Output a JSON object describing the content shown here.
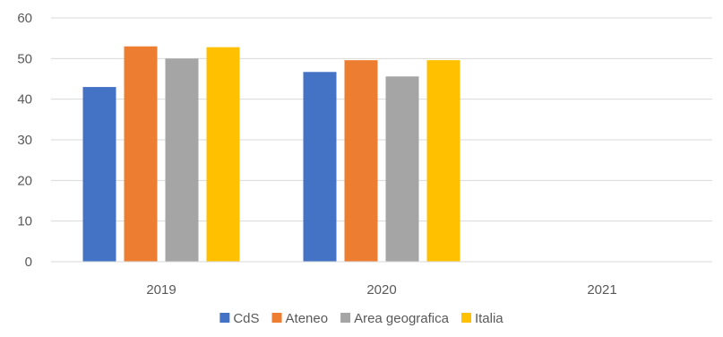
{
  "chart_data": {
    "type": "bar",
    "title": "",
    "xlabel": "",
    "ylabel": "",
    "categories": [
      "2019",
      "2020",
      "2021"
    ],
    "ylim": [
      0,
      60
    ],
    "yticks": [
      0,
      10,
      20,
      30,
      40,
      50,
      60
    ],
    "grid": true,
    "legend_position": "bottom",
    "series": [
      {
        "name": "CdS",
        "color": "#4472C4",
        "values": [
          43,
          46.7,
          null
        ]
      },
      {
        "name": "Ateneo",
        "color": "#ED7D31",
        "values": [
          53,
          49.6,
          null
        ]
      },
      {
        "name": "Area geografica",
        "color": "#A5A5A5",
        "values": [
          50,
          45.6,
          null
        ]
      },
      {
        "name": "Italia",
        "color": "#FFC000",
        "values": [
          52.8,
          49.6,
          null
        ]
      }
    ]
  }
}
